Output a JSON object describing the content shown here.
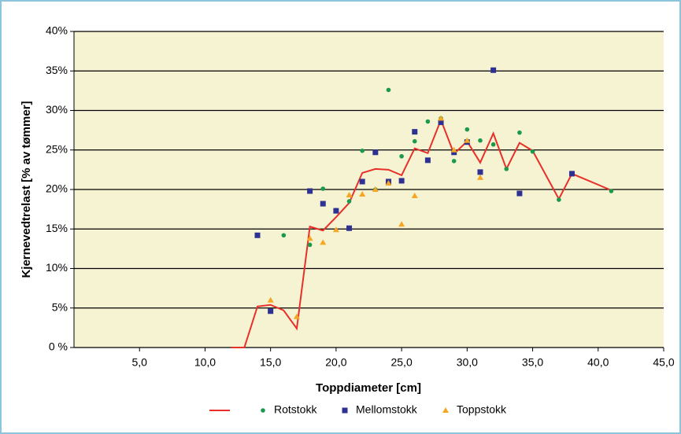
{
  "chart_data": {
    "type": "scatter",
    "x_label": "Toppdiameter [cm]",
    "y_label": "Kjernevedtrelast [% av tømmer]",
    "xlim": [
      0,
      45
    ],
    "xticks": [
      {
        "value": 5,
        "label": "5,0"
      },
      {
        "value": 10,
        "label": "10,0"
      },
      {
        "value": 15,
        "label": "15,0"
      },
      {
        "value": 20,
        "label": "20,0"
      },
      {
        "value": 25,
        "label": "25,0"
      },
      {
        "value": 30,
        "label": "30,0"
      },
      {
        "value": 35,
        "label": "35,0"
      },
      {
        "value": 40,
        "label": "40,0"
      },
      {
        "value": 45,
        "label": "45,0"
      }
    ],
    "ylim": [
      0,
      40
    ],
    "yticks": [
      {
        "value": 0,
        "label": "0 %"
      },
      {
        "value": 5,
        "label": "5%"
      },
      {
        "value": 10,
        "label": "10%"
      },
      {
        "value": 15,
        "label": "15%"
      },
      {
        "value": 20,
        "label": "20%"
      },
      {
        "value": 25,
        "label": "25%"
      },
      {
        "value": 30,
        "label": "30%"
      },
      {
        "value": 35,
        "label": "35%"
      },
      {
        "value": 40,
        "label": "40%"
      }
    ],
    "grid": true,
    "legend": "bottom",
    "series": [
      {
        "marker": "line",
        "color": "#e8302a",
        "x": [
          12,
          13,
          14,
          15,
          16,
          17,
          18,
          19,
          20,
          21,
          22,
          23,
          24,
          25,
          26,
          27,
          28,
          29,
          30,
          31,
          32,
          33,
          34,
          35,
          37,
          38,
          41
        ],
        "values": [
          0,
          0,
          5.2,
          5.4,
          4.7,
          2.4,
          15.3,
          14.8,
          16.5,
          18.3,
          22.1,
          22.6,
          22.5,
          21.8,
          25.2,
          24.6,
          28.8,
          24.5,
          26.1,
          23.4,
          27.1,
          22.6,
          25.9,
          24.9,
          18.8,
          22.0,
          19.9
        ]
      },
      {
        "name": "Rotstokk",
        "marker": "circle",
        "color": "#1a9a4a",
        "x": [
          16,
          18,
          19,
          20,
          21,
          22,
          23,
          24,
          25,
          26,
          27,
          28,
          29,
          30,
          31,
          32,
          33,
          34,
          35,
          37,
          41
        ],
        "values": [
          14.2,
          13.0,
          20.1,
          17.4,
          18.5,
          24.9,
          20.0,
          32.6,
          24.2,
          26.1,
          28.6,
          29.0,
          23.6,
          27.6,
          26.2,
          25.7,
          22.6,
          27.2,
          24.8,
          18.7,
          19.8
        ]
      },
      {
        "name": "Mellomstokk",
        "marker": "square",
        "color": "#2e3192",
        "x": [
          14,
          15,
          18,
          19,
          20,
          21,
          22,
          23,
          24,
          25,
          26,
          27,
          28,
          29,
          30,
          31,
          32,
          34,
          38
        ],
        "values": [
          14.2,
          4.6,
          19.8,
          18.2,
          17.3,
          15.1,
          21.0,
          24.7,
          21.0,
          21.1,
          27.3,
          23.7,
          28.5,
          24.7,
          26.0,
          22.2,
          35.1,
          19.5,
          22.0
        ]
      },
      {
        "name": "Toppstokk",
        "marker": "triangle",
        "color": "#f5a623",
        "x": [
          15,
          17,
          18,
          19,
          20,
          21,
          22,
          23,
          24,
          25,
          26,
          28,
          29,
          30,
          31
        ],
        "values": [
          6.0,
          3.9,
          13.8,
          13.3,
          14.9,
          19.3,
          19.4,
          20.0,
          20.8,
          15.6,
          19.2,
          29.0,
          25.0,
          26.2,
          21.5
        ]
      }
    ]
  }
}
